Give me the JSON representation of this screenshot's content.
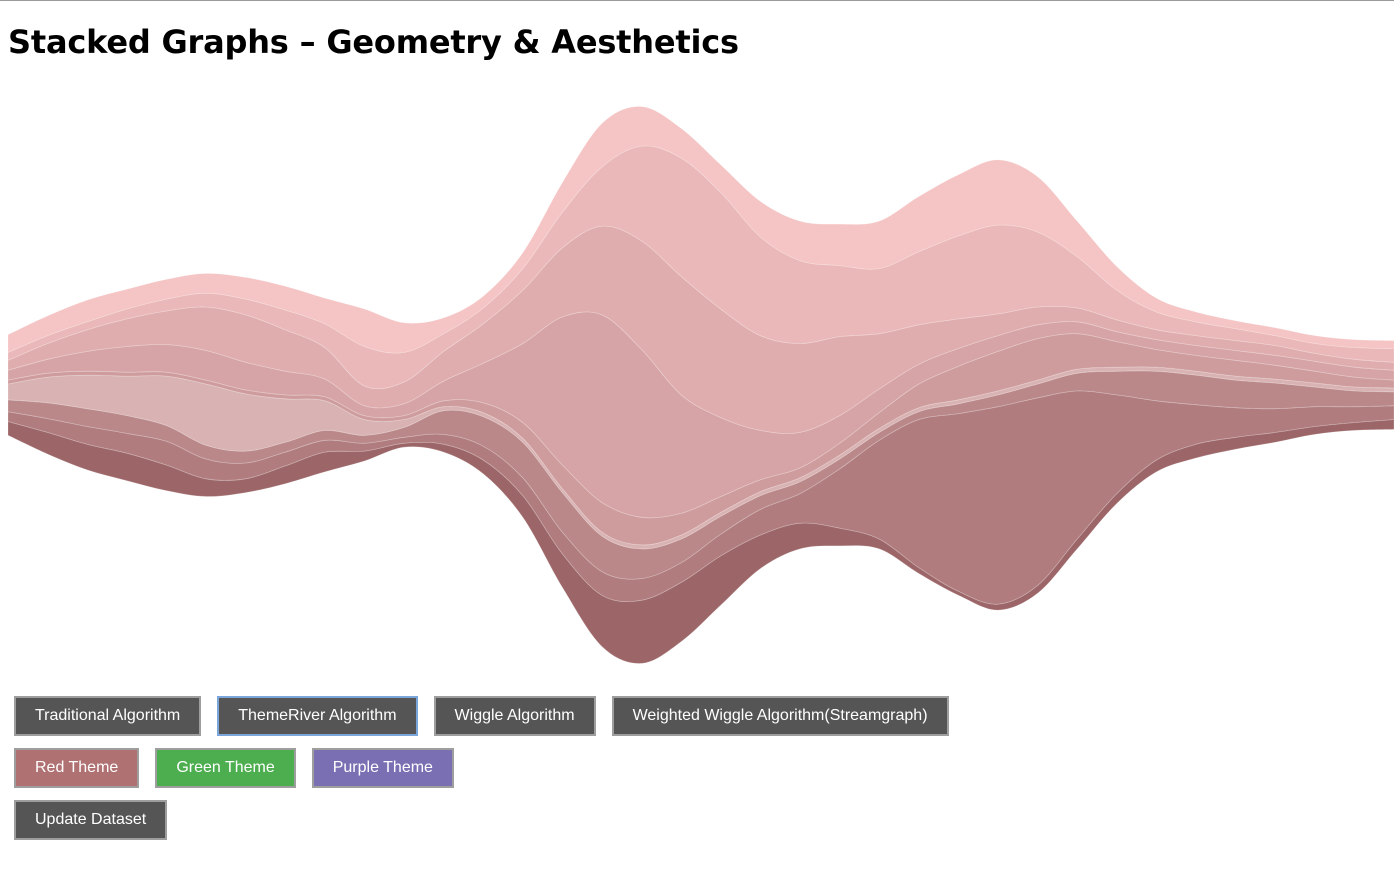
{
  "page": {
    "title": "Stacked Graphs – Geometry & Aesthetics"
  },
  "algorithm_buttons": [
    {
      "label": "Traditional Algorithm",
      "selected": false
    },
    {
      "label": "ThemeRiver Algorithm",
      "selected": true
    },
    {
      "label": "Wiggle Algorithm",
      "selected": false
    },
    {
      "label": "Weighted Wiggle Algorithm(Streamgraph)",
      "selected": false
    }
  ],
  "theme_buttons": [
    {
      "label": "Red Theme",
      "color": "#b07173"
    },
    {
      "label": "Green Theme",
      "color": "#4cae4f"
    },
    {
      "label": "Purple Theme",
      "color": "#7b6fb3"
    }
  ],
  "update_button": {
    "label": "Update Dataset",
    "color": "#555555"
  },
  "chart_data": {
    "type": "area",
    "layout": "themeriver-centered",
    "x": [
      0,
      1,
      2,
      3,
      4,
      5,
      6,
      7,
      8,
      9,
      10,
      11,
      12,
      13,
      14,
      15,
      16,
      17,
      18,
      19,
      20,
      21,
      22,
      23,
      24,
      25,
      26,
      27,
      28,
      29,
      30,
      31,
      32,
      33,
      34,
      35
    ],
    "ylim": [
      -310,
      310
    ],
    "grid": false,
    "legend": "none",
    "series": [
      {
        "color": "#9c6668",
        "values": [
          14,
          22,
          26,
          28,
          26,
          18,
          14,
          18,
          20,
          10,
          4,
          8,
          14,
          22,
          34,
          52,
          64,
          60,
          50,
          34,
          26,
          18,
          10,
          6,
          4,
          6,
          8,
          10,
          10,
          12,
          14,
          12,
          10,
          8,
          8,
          10
        ]
      },
      {
        "color": "#b07c7e",
        "values": [
          10,
          14,
          18,
          20,
          24,
          20,
          16,
          14,
          12,
          8,
          6,
          10,
          14,
          18,
          22,
          24,
          22,
          20,
          22,
          26,
          30,
          60,
          100,
          150,
          180,
          200,
          190,
          150,
          100,
          60,
          40,
          30,
          24,
          20,
          16,
          14
        ]
      },
      {
        "color": "#ba8889",
        "values": [
          12,
          16,
          18,
          18,
          16,
          14,
          12,
          10,
          10,
          8,
          10,
          24,
          30,
          36,
          40,
          36,
          30,
          24,
          18,
          14,
          12,
          10,
          8,
          8,
          10,
          12,
          14,
          18,
          24,
          30,
          30,
          28,
          26,
          20,
          16,
          14
        ]
      },
      {
        "color": "#d9b3b3",
        "values": [
          16,
          26,
          34,
          40,
          50,
          62,
          58,
          44,
          30,
          16,
          8,
          4,
          4,
          4,
          4,
          4,
          4,
          4,
          4,
          4,
          4,
          4,
          4,
          4,
          4,
          4,
          4,
          4,
          4,
          4,
          4,
          4,
          4,
          4,
          4,
          4
        ]
      },
      {
        "color": "#cf9c9d",
        "values": [
          4,
          4,
          4,
          4,
          4,
          4,
          4,
          4,
          4,
          4,
          4,
          6,
          10,
          16,
          24,
          30,
          28,
          22,
          16,
          12,
          10,
          12,
          16,
          24,
          34,
          40,
          42,
          36,
          26,
          18,
          16,
          16,
          14,
          12,
          10,
          8
        ]
      },
      {
        "color": "#d6a4a6",
        "values": [
          10,
          14,
          20,
          26,
          28,
          30,
          28,
          24,
          18,
          10,
          12,
          20,
          40,
          80,
          150,
          190,
          170,
          120,
          80,
          50,
          36,
          28,
          24,
          20,
          18,
          16,
          14,
          12,
          10,
          10,
          10,
          10,
          10,
          10,
          10,
          10
        ]
      },
      {
        "color": "#e0adae",
        "values": [
          10,
          16,
          22,
          28,
          34,
          44,
          48,
          42,
          32,
          20,
          22,
          30,
          40,
          54,
          70,
          90,
          110,
          120,
          110,
          96,
          90,
          80,
          56,
          40,
          30,
          22,
          18,
          14,
          12,
          10,
          10,
          10,
          10,
          8,
          8,
          8
        ]
      },
      {
        "color": "#eab8b8",
        "values": [
          8,
          8,
          8,
          10,
          12,
          14,
          16,
          20,
          24,
          40,
          30,
          18,
          16,
          22,
          36,
          60,
          96,
          120,
          118,
          100,
          84,
          72,
          66,
          74,
          84,
          90,
          76,
          52,
          30,
          18,
          14,
          12,
          10,
          10,
          12,
          14
        ]
      },
      {
        "color": "#f5c4c4",
        "values": [
          18,
          20,
          22,
          20,
          20,
          20,
          22,
          24,
          26,
          38,
          30,
          16,
          12,
          16,
          30,
          44,
          40,
          30,
          28,
          36,
          40,
          42,
          48,
          56,
          62,
          66,
          56,
          36,
          24,
          14,
          10,
          8,
          8,
          8,
          8,
          8
        ]
      }
    ]
  }
}
